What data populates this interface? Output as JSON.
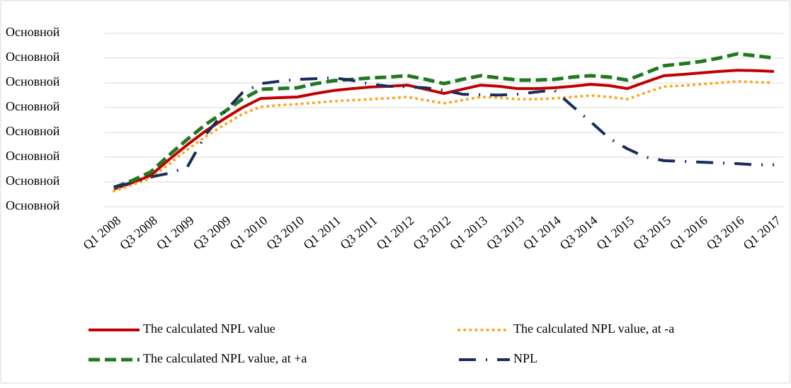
{
  "chart_data": {
    "type": "line",
    "categories": [
      "Q1 2008",
      null,
      "Q3 2008",
      null,
      "Q1 2009",
      null,
      "Q3 2009",
      null,
      "Q1 2010",
      null,
      "Q3 2010",
      null,
      "Q1 2011",
      null,
      "Q3 2011",
      null,
      "Q1 2012",
      null,
      "Q3 2012",
      null,
      "Q1 2013",
      null,
      "Q3 2013",
      null,
      "Q1 2014",
      null,
      "Q3 2014",
      null,
      "Q1 2015",
      null,
      "Q3 2015",
      null,
      "Q1 2016",
      null,
      "Q3 2016",
      null,
      "Q1 2017"
    ],
    "series": [
      {
        "name": "The calculated NPL value",
        "color": "#c00000",
        "line_style": "solid",
        "values": [
          0.71,
          0.97,
          1.26,
          1.9,
          2.5,
          3.06,
          3.54,
          4.0,
          4.37,
          4.4,
          4.43,
          4.57,
          4.69,
          4.77,
          4.83,
          4.86,
          4.91,
          4.74,
          4.57,
          4.74,
          4.91,
          4.86,
          4.77,
          4.77,
          4.8,
          4.86,
          4.94,
          4.89,
          4.77,
          5.03,
          5.29,
          5.34,
          5.4,
          5.46,
          5.51,
          5.49,
          5.46
        ]
      },
      {
        "name": "The calculated NPL value, at -a",
        "color": "#ffa41c",
        "line_style": "dotted",
        "values": [
          0.63,
          0.88,
          1.15,
          1.72,
          2.3,
          2.83,
          3.3,
          3.74,
          4.03,
          4.1,
          4.14,
          4.2,
          4.26,
          4.3,
          4.34,
          4.38,
          4.43,
          4.3,
          4.17,
          4.3,
          4.43,
          4.4,
          4.34,
          4.34,
          4.37,
          4.43,
          4.49,
          4.43,
          4.34,
          4.6,
          4.85,
          4.89,
          4.94,
          5.0,
          5.06,
          5.03,
          5.0
        ]
      },
      {
        "name": "The calculated NPL value, at +a",
        "color": "#1f7a1f",
        "line_style": "dashed",
        "values": [
          0.77,
          1.06,
          1.4,
          2.08,
          2.72,
          3.32,
          3.82,
          4.34,
          4.74,
          4.77,
          4.8,
          4.97,
          5.09,
          5.14,
          5.2,
          5.23,
          5.29,
          5.14,
          4.97,
          5.14,
          5.29,
          5.2,
          5.11,
          5.11,
          5.14,
          5.23,
          5.29,
          5.23,
          5.11,
          5.4,
          5.69,
          5.77,
          5.86,
          6.0,
          6.17,
          6.09,
          6.0
        ]
      },
      {
        "name": "NPL",
        "color": "#1a2b5e",
        "line_style": "dashdot",
        "values": [
          0.8,
          0.97,
          1.2,
          1.35,
          1.6,
          2.91,
          3.8,
          4.6,
          4.97,
          5.06,
          5.14,
          5.17,
          5.2,
          5.1,
          4.95,
          4.86,
          4.84,
          4.8,
          4.7,
          4.54,
          4.52,
          4.51,
          4.54,
          4.63,
          4.71,
          4.06,
          3.43,
          2.77,
          2.34,
          2.0,
          1.86,
          1.83,
          1.8,
          1.77,
          1.74,
          1.69,
          1.69
        ]
      }
    ],
    "ylim": [
      0,
      7
    ],
    "yticks": [
      {
        "value": 0,
        "label": "Основной"
      },
      {
        "value": 1,
        "label": "Основной"
      },
      {
        "value": 2,
        "label": "Основной"
      },
      {
        "value": 3,
        "label": "Основной"
      },
      {
        "value": 4,
        "label": "Основной"
      },
      {
        "value": 5,
        "label": "Основной"
      },
      {
        "value": 6,
        "label": "Основной"
      },
      {
        "value": 7,
        "label": "Основной"
      }
    ],
    "grid": true
  }
}
